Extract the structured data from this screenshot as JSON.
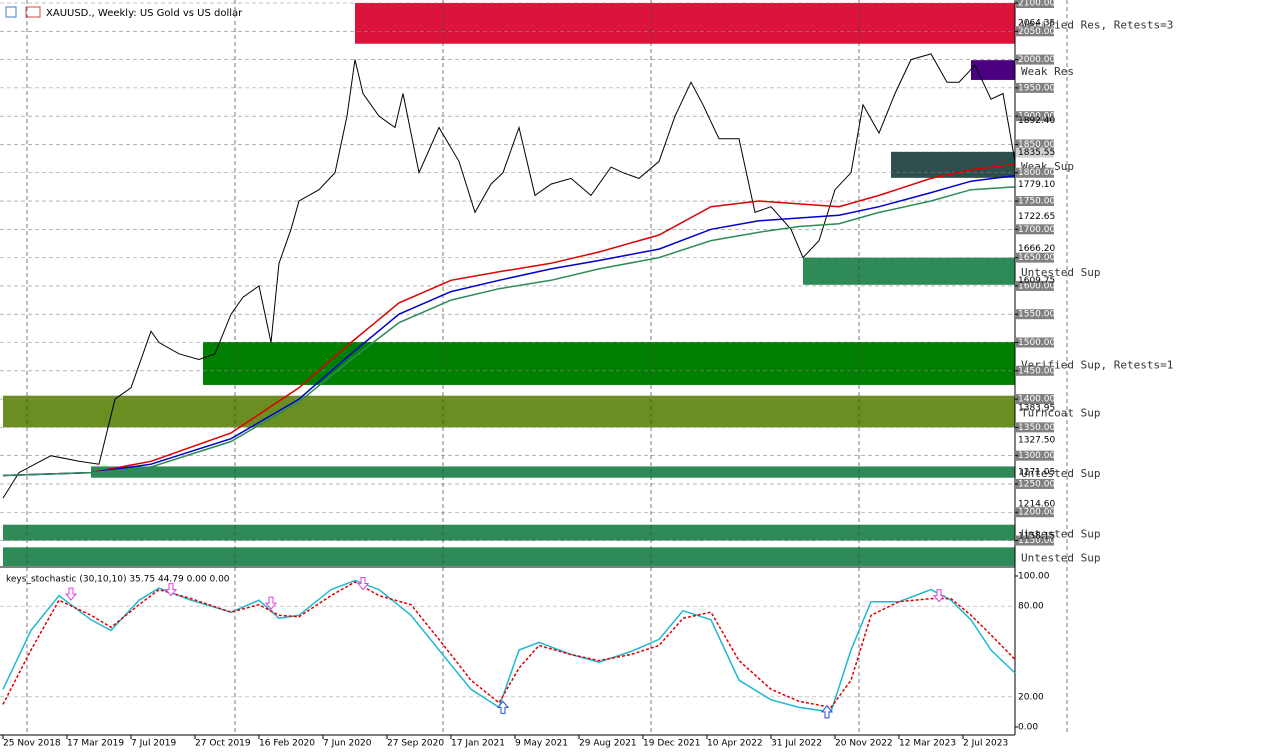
{
  "chart_data": [
    {
      "type": "price",
      "title": "XAUUSD., Weekly: US Gold vs US dollar",
      "xlim": [
        -0.75,
        253
      ],
      "xticks": [
        {
          "value": 0,
          "label": "25 Nov 2018"
        },
        {
          "value": 16,
          "label": "17 Mar 2019"
        },
        {
          "value": 32,
          "label": "7 Jul 2019"
        },
        {
          "value": 48,
          "label": "27 Oct 2019"
        },
        {
          "value": 64,
          "label": "16 Feb 2020"
        },
        {
          "value": 80,
          "label": "7 Jun 2020"
        },
        {
          "value": 96,
          "label": "27 Sep 2020"
        },
        {
          "value": 112,
          "label": "17 Jan 2021"
        },
        {
          "value": 128,
          "label": "9 May 2021"
        },
        {
          "value": 144,
          "label": "29 Aug 2021"
        },
        {
          "value": 160,
          "label": "19 Dec 2021"
        },
        {
          "value": 176,
          "label": "10 Apr 2022"
        },
        {
          "value": 192,
          "label": "31 Jul 2022"
        },
        {
          "value": 208,
          "label": "20 Nov 2022"
        },
        {
          "value": 224,
          "label": "12 Mar 2023"
        },
        {
          "value": 240,
          "label": "2 Jul 2023"
        }
      ],
      "xgrid": [
        6,
        58,
        110,
        162,
        214,
        266
      ],
      "ylim": [
        1105,
        2100
      ],
      "yticks": [
        {
          "value": 2100,
          "label": "2100.00"
        },
        {
          "value": 2050,
          "label": "2050.00"
        },
        {
          "value": 2000,
          "label": "2000.00"
        },
        {
          "value": 1950,
          "label": "1950.00"
        },
        {
          "value": 1900,
          "label": "1900.00"
        },
        {
          "value": 1850,
          "label": "1850.00"
        },
        {
          "value": 1800,
          "label": "1800.00"
        },
        {
          "value": 1750,
          "label": "1750.00"
        },
        {
          "value": 1700,
          "label": "1700.00"
        },
        {
          "value": 1650,
          "label": "1650.00"
        },
        {
          "value": 1600,
          "label": "1600.00"
        },
        {
          "value": 1550,
          "label": "1550.00"
        },
        {
          "value": 1500,
          "label": "1500.00"
        },
        {
          "value": 1450,
          "label": "1450.00"
        },
        {
          "value": 1400,
          "label": "1400.00"
        },
        {
          "value": 1350,
          "label": "1350.00"
        },
        {
          "value": 1300,
          "label": "1300.00"
        },
        {
          "value": 1250,
          "label": "1250.00"
        },
        {
          "value": 1200,
          "label": "1200.00"
        },
        {
          "value": 1150,
          "label": "1150.00"
        }
      ],
      "price_levels": [
        {
          "value": 2064.35,
          "label": "2064.35"
        },
        {
          "value": 1892.4,
          "label": "1892.40"
        },
        {
          "value": 1779.1,
          "label": "1779.10"
        },
        {
          "value": 1722.65,
          "label": "1722.65"
        },
        {
          "value": 1666.2,
          "label": "1666.20"
        },
        {
          "value": 1609.75,
          "label": "1609.75"
        },
        {
          "value": 1383.95,
          "label": "1383.95"
        },
        {
          "value": 1327.5,
          "label": "1327.50"
        },
        {
          "value": 1271.05,
          "label": "1271.05"
        },
        {
          "value": 1214.6,
          "label": "1214.60"
        },
        {
          "value": 1158.15,
          "label": "1158.15"
        }
      ],
      "last_price": {
        "value": 1835.55,
        "label": "1835.55"
      },
      "grid": true,
      "zones": [
        {
          "name": "Verified Res, Retests=3",
          "from": 88,
          "top": 2100,
          "bottom": 2028,
          "color": "#dc143c"
        },
        {
          "name": "Weak Res",
          "from": 242,
          "top": 1999,
          "bottom": 1964,
          "color": "#4b0082"
        },
        {
          "name": "Weak Sup",
          "from": 222,
          "top": 1837,
          "bottom": 1791,
          "color": "#2f4f4f"
        },
        {
          "name": "Untested Sup",
          "from": 200,
          "top": 1650,
          "bottom": 1602,
          "color": "#2e8b57"
        },
        {
          "name": "Verified Sup, Retests=1",
          "from": 50,
          "top": 1501,
          "bottom": 1425,
          "color": "#008000"
        },
        {
          "name": "Turncoat Sup",
          "from": 0,
          "top": 1406,
          "bottom": 1350,
          "color": "#6b8e23"
        },
        {
          "name": "Untested Sup",
          "from": 22,
          "top": 1281,
          "bottom": 1261,
          "color": "#2e8b57"
        },
        {
          "name": "Untested Sup",
          "from": 0,
          "top": 1178,
          "bottom": 1150,
          "color": "#2e8b57"
        },
        {
          "name": "Untested Sup",
          "from": 0,
          "top": 1138,
          "bottom": 1105,
          "color": "#2e8b57"
        }
      ],
      "series": [
        {
          "color": "#000000",
          "x": [
            0,
            4,
            12,
            19,
            24,
            28,
            32,
            37,
            39,
            44,
            49,
            53,
            57,
            60,
            64,
            67,
            69,
            72,
            74,
            79,
            83,
            86,
            88,
            90,
            94,
            98,
            100,
            104,
            109,
            114,
            118,
            122,
            125,
            129,
            133,
            137,
            142,
            147,
            152,
            155,
            159,
            164,
            168,
            172,
            175,
            179,
            184,
            188,
            192,
            197,
            200,
            204,
            208,
            212,
            215,
            219,
            223,
            227,
            232,
            236,
            239,
            243,
            247,
            250,
            253
          ],
          "values": [
            1225,
            1270,
            1300,
            1290,
            1285,
            1400,
            1420,
            1520,
            1500,
            1480,
            1470,
            1480,
            1550,
            1580,
            1600,
            1500,
            1640,
            1700,
            1750,
            1770,
            1800,
            1900,
            2000,
            1940,
            1900,
            1880,
            1940,
            1800,
            1880,
            1820,
            1730,
            1780,
            1800,
            1880,
            1760,
            1780,
            1790,
            1760,
            1810,
            1800,
            1790,
            1820,
            1900,
            1960,
            1920,
            1860,
            1860,
            1730,
            1740,
            1700,
            1650,
            1680,
            1770,
            1800,
            1920,
            1870,
            1940,
            2000,
            2010,
            1960,
            1960,
            1990,
            1930,
            1940,
            1820
          ]
        },
        {
          "color": "#e00000",
          "x": [
            0,
            22,
            37,
            57,
            74,
            87,
            99,
            112,
            124,
            137,
            149,
            164,
            177,
            189,
            199,
            209,
            219,
            232,
            242,
            253
          ],
          "values": [
            1265,
            1270,
            1290,
            1340,
            1420,
            1500,
            1570,
            1610,
            1625,
            1640,
            1660,
            1690,
            1740,
            1750,
            1745,
            1740,
            1760,
            1790,
            1805,
            1815
          ]
        },
        {
          "color": "#0000d0",
          "x": [
            0,
            22,
            37,
            57,
            74,
            87,
            99,
            112,
            124,
            137,
            149,
            164,
            177,
            189,
            199,
            209,
            219,
            232,
            242,
            253
          ],
          "values": [
            1265,
            1270,
            1285,
            1330,
            1400,
            1480,
            1550,
            1590,
            1610,
            1630,
            1645,
            1665,
            1700,
            1715,
            1720,
            1725,
            1740,
            1765,
            1785,
            1795
          ]
        },
        {
          "color": "#2e8b57",
          "x": [
            0,
            22,
            37,
            57,
            74,
            87,
            99,
            112,
            124,
            137,
            149,
            164,
            177,
            189,
            199,
            209,
            219,
            232,
            242,
            253
          ],
          "values": [
            1265,
            1270,
            1280,
            1325,
            1395,
            1470,
            1535,
            1575,
            1595,
            1610,
            1630,
            1650,
            1680,
            1695,
            1705,
            1710,
            1730,
            1750,
            1770,
            1775
          ]
        }
      ]
    },
    {
      "type": "oscillator",
      "title": "keys_stochastic (30,10,10) 35.75 44.79 0.00 0.00",
      "xlim": [
        -0.75,
        253
      ],
      "ylim": [
        0,
        100
      ],
      "yticks": [
        {
          "value": 100,
          "label": "100.00"
        },
        {
          "value": 80,
          "label": "80.00"
        },
        {
          "value": 20,
          "label": "20.00"
        },
        {
          "value": 0,
          "label": "0.00"
        }
      ],
      "series": [
        {
          "color": "#20b8d0",
          "dashed": false,
          "x": [
            0,
            7,
            14,
            22,
            27,
            34,
            39,
            47,
            57,
            64,
            69,
            74,
            82,
            88,
            94,
            102,
            109,
            117,
            124,
            129,
            134,
            142,
            149,
            157,
            164,
            170,
            177,
            184,
            192,
            199,
            207,
            212,
            217,
            224,
            232,
            237,
            242,
            247,
            253
          ],
          "values": [
            25,
            64,
            87,
            71,
            64,
            84,
            92,
            84,
            76,
            84,
            72,
            74,
            91,
            97,
            91,
            74,
            51,
            25,
            13,
            51,
            56,
            48,
            43,
            50,
            58,
            77,
            71,
            31,
            18,
            13,
            10,
            51,
            83,
            83,
            91,
            84,
            71,
            51,
            35.75
          ]
        },
        {
          "color": "#e00000",
          "dashed": true,
          "x": [
            0,
            7,
            14,
            22,
            27,
            34,
            39,
            47,
            57,
            64,
            69,
            74,
            82,
            88,
            94,
            102,
            109,
            117,
            124,
            129,
            134,
            142,
            149,
            157,
            164,
            170,
            177,
            184,
            192,
            199,
            207,
            212,
            217,
            224,
            232,
            237,
            242,
            247,
            253
          ],
          "values": [
            15,
            51,
            84,
            74,
            66,
            81,
            91,
            85,
            76,
            81,
            74,
            73,
            87,
            96,
            87,
            81,
            58,
            31,
            16,
            39,
            54,
            48,
            44,
            48,
            54,
            72,
            76,
            44,
            25,
            17,
            13,
            31,
            74,
            83,
            85,
            85,
            74,
            61,
            44.79
          ]
        }
      ],
      "signals": [
        {
          "x": 17,
          "value": 88,
          "direction": "down"
        },
        {
          "x": 42,
          "value": 91,
          "direction": "down"
        },
        {
          "x": 67,
          "value": 82,
          "direction": "down"
        },
        {
          "x": 90,
          "value": 95,
          "direction": "down"
        },
        {
          "x": 125,
          "value": 13,
          "direction": "up"
        },
        {
          "x": 206,
          "value": 10,
          "direction": "up"
        },
        {
          "x": 234,
          "value": 87,
          "direction": "down"
        }
      ]
    }
  ]
}
